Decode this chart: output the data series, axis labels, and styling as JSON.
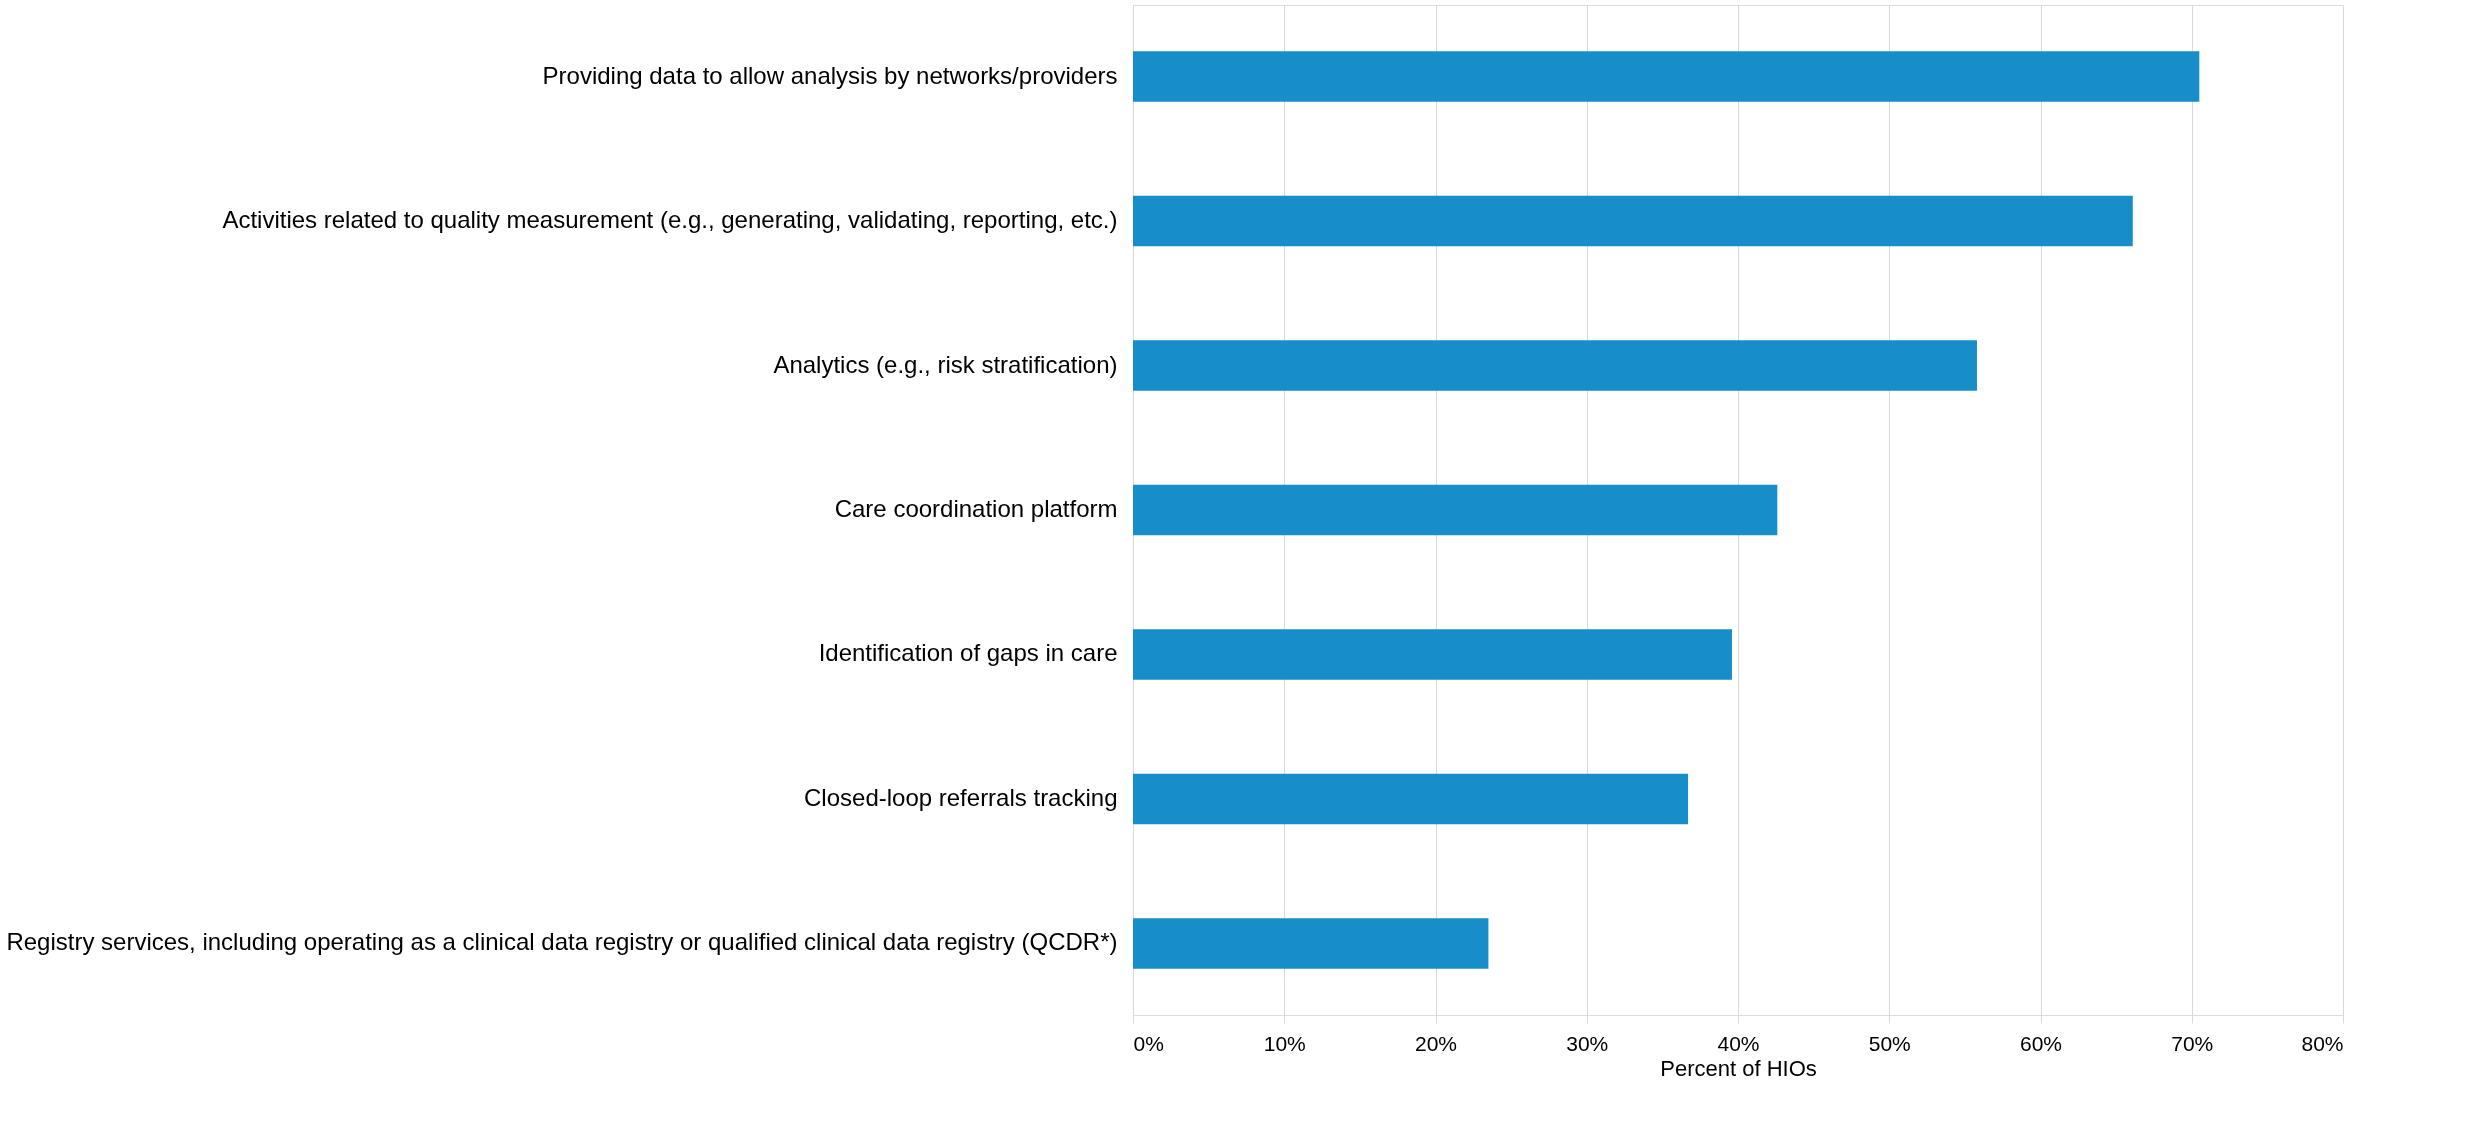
{
  "chart_data": {
    "type": "bar",
    "orientation": "horizontal",
    "xlabel": "Percent of HIOs",
    "categories": [
      "Providing data to allow analysis by networks/providers",
      "Activities related to quality measurement (e.g., generating, validating, reporting, etc.)",
      "Analytics (e.g., risk stratification)",
      "Care coordination platform",
      "Identification of gaps in care",
      "Closed-loop referrals tracking",
      "Registry services, including operating as a clinical data registry or qualified clinical data registry (QCDR*)"
    ],
    "values": [
      70.5,
      66.1,
      55.8,
      42.6,
      39.6,
      36.7,
      23.5
    ],
    "color": "#178dca",
    "xlim": [
      0,
      80
    ],
    "xticks": [
      {
        "value": 0,
        "label": "0%"
      },
      {
        "value": 10,
        "label": "10%"
      },
      {
        "value": 20,
        "label": "20%"
      },
      {
        "value": 30,
        "label": "30%"
      },
      {
        "value": 40,
        "label": "40%"
      },
      {
        "value": 50,
        "label": "50%"
      },
      {
        "value": 60,
        "label": "60%"
      },
      {
        "value": 70,
        "label": "70%"
      },
      {
        "value": 80,
        "label": "80%"
      }
    ],
    "grid": "x"
  }
}
